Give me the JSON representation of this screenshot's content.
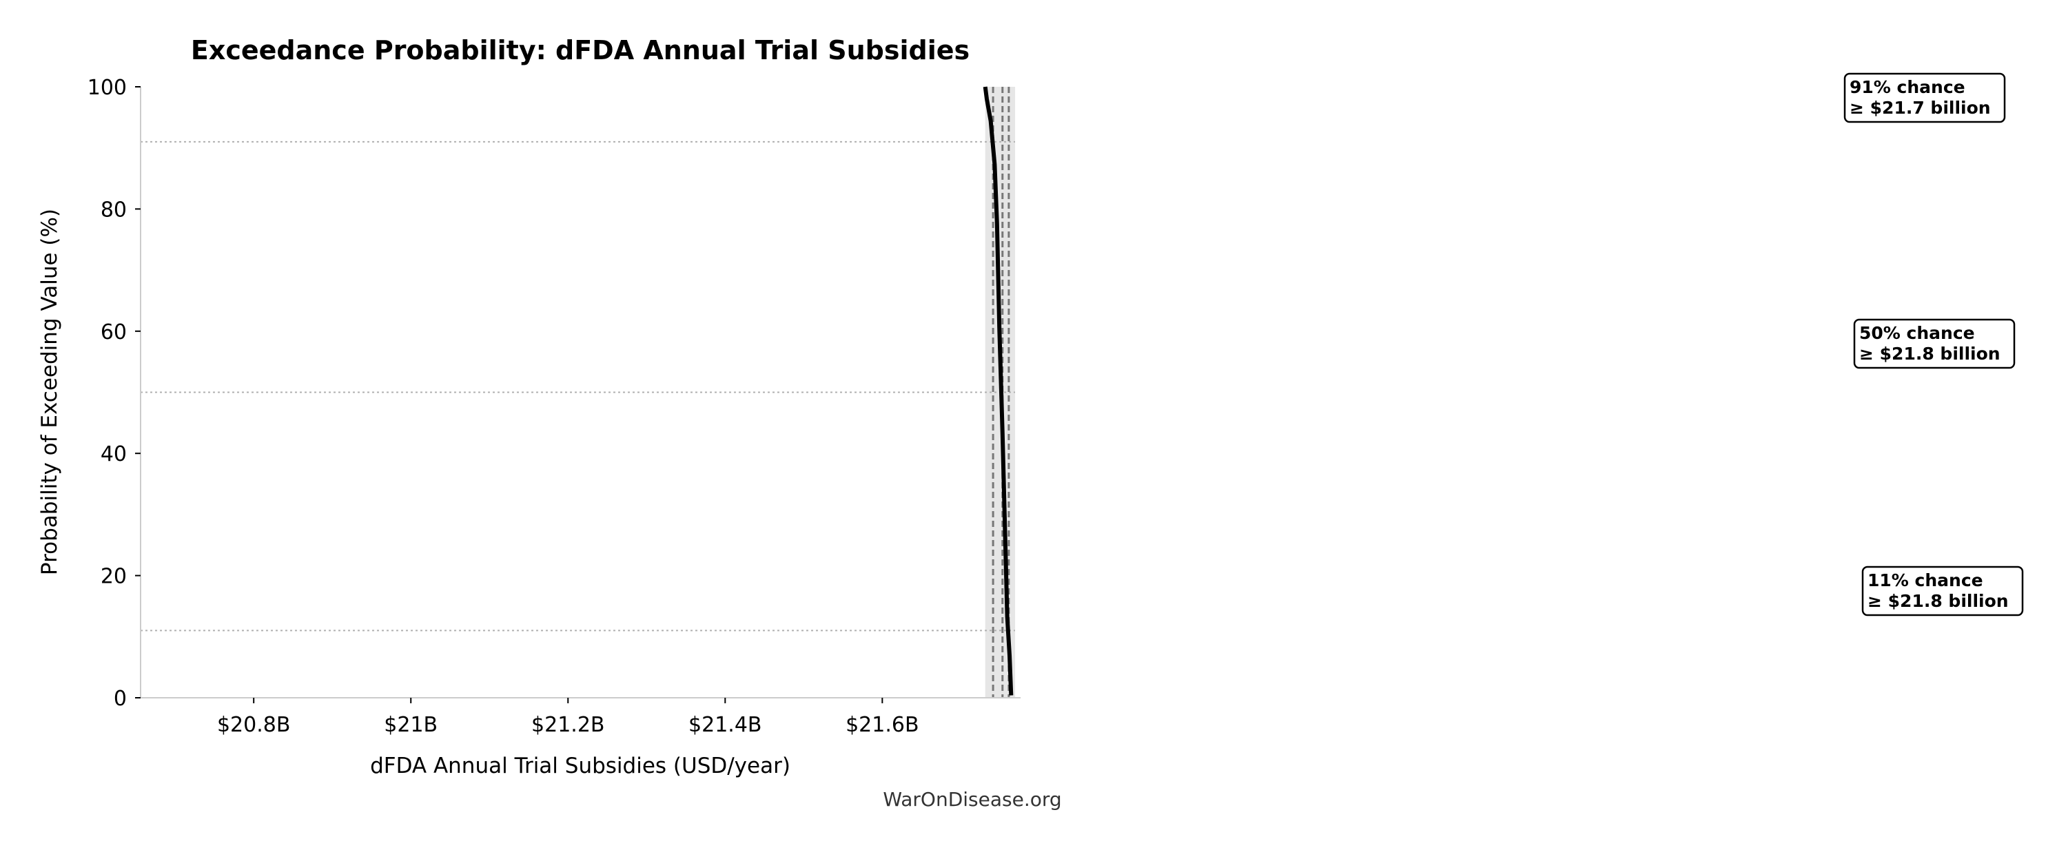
{
  "chart_data": {
    "type": "line",
    "title": "Exceedance Probability: dFDA Annual Trial Subsidies",
    "xlabel": "dFDA Annual Trial Subsidies (USD/year)",
    "ylabel": "Probability of Exceeding Value (%)",
    "xlim": [
      20.656,
      21.776
    ],
    "ylim": [
      0,
      100
    ],
    "x_ticks": [
      {
        "value": 20.8,
        "label": "$20.8B"
      },
      {
        "value": 21.0,
        "label": "$21B"
      },
      {
        "value": 21.2,
        "label": "$21.2B"
      },
      {
        "value": 21.4,
        "label": "$21.4B"
      },
      {
        "value": 21.6,
        "label": "$21.6B"
      }
    ],
    "y_ticks": [
      {
        "value": 0,
        "label": "0"
      },
      {
        "value": 20,
        "label": "20"
      },
      {
        "value": 40,
        "label": "40"
      },
      {
        "value": 60,
        "label": "60"
      },
      {
        "value": 80,
        "label": "80"
      },
      {
        "value": 100,
        "label": "100"
      }
    ],
    "grid": false,
    "curve_color": "#000000",
    "x_units": "USD billions/year",
    "series": [
      {
        "x": [
          21.731,
          21.733,
          21.738,
          21.743,
          21.746,
          21.749,
          21.753,
          21.756,
          21.759,
          21.762,
          21.764
        ],
        "y": [
          100,
          98,
          94.4,
          87.3,
          77.7,
          60.5,
          43.3,
          28.3,
          13.3,
          6.9,
          0.4
        ]
      }
    ],
    "shaded_band": [
      21.731,
      21.769
    ],
    "percentile_lines": [
      21.741,
      21.753,
      21.761
    ],
    "reference_lines_y": [
      91,
      50,
      11
    ],
    "annotations": [
      {
        "line1": "91% chance",
        "line2": "≥ $21.7 billion"
      },
      {
        "line1": "50% chance",
        "line2": "≥ $21.8 billion"
      },
      {
        "line1": "11% chance",
        "line2": "≥ $21.8 billion"
      }
    ],
    "watermark": "WarOnDisease.org"
  }
}
